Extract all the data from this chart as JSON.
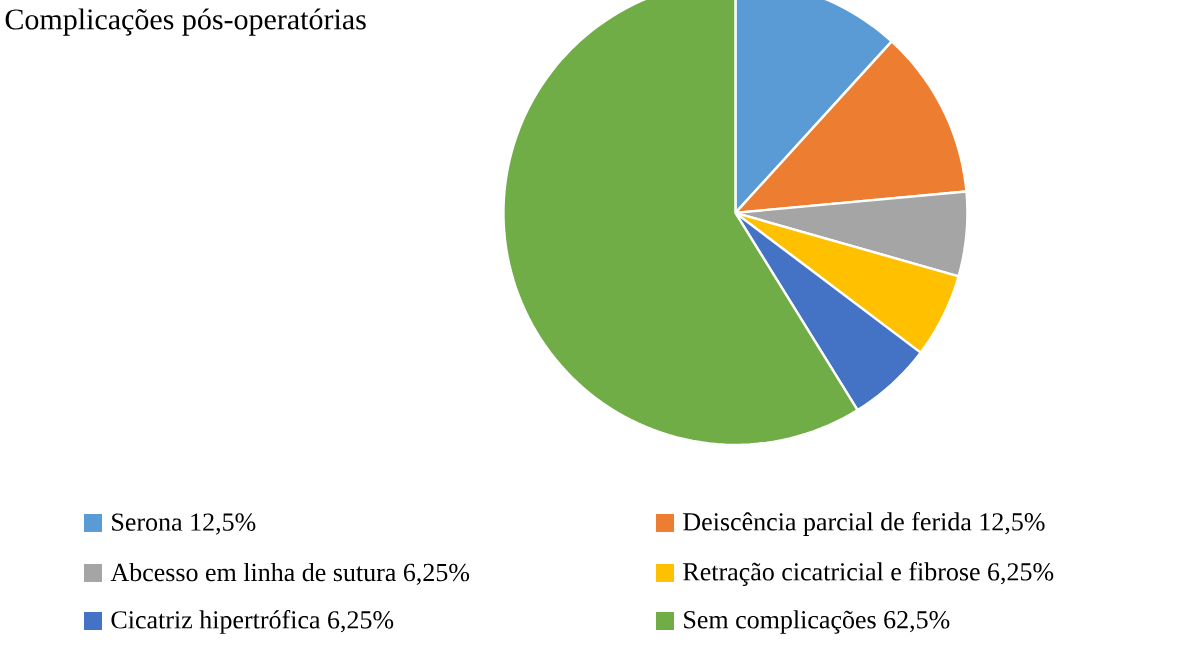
{
  "chart_data": {
    "type": "pie",
    "title": "Complicações pós-operatórias",
    "categories": [
      "Serona",
      "Deiscência parcial de ferida",
      "Abcesso em linha de sutura",
      "Retração cicatricial e fibrose",
      "Cicatriz hipertrófica",
      "Sem complicações"
    ],
    "values": [
      12.5,
      12.5,
      6.25,
      6.25,
      6.25,
      62.5
    ],
    "value_labels": [
      "12,5%",
      "12,5%",
      "6,25%",
      "6,25%",
      "6,25%",
      "62,5%"
    ],
    "colors": [
      "#5b9bd5",
      "#ed7d31",
      "#a5a5a5",
      "#ffc000",
      "#4472c4",
      "#70ad47"
    ],
    "legend": "bottom"
  }
}
